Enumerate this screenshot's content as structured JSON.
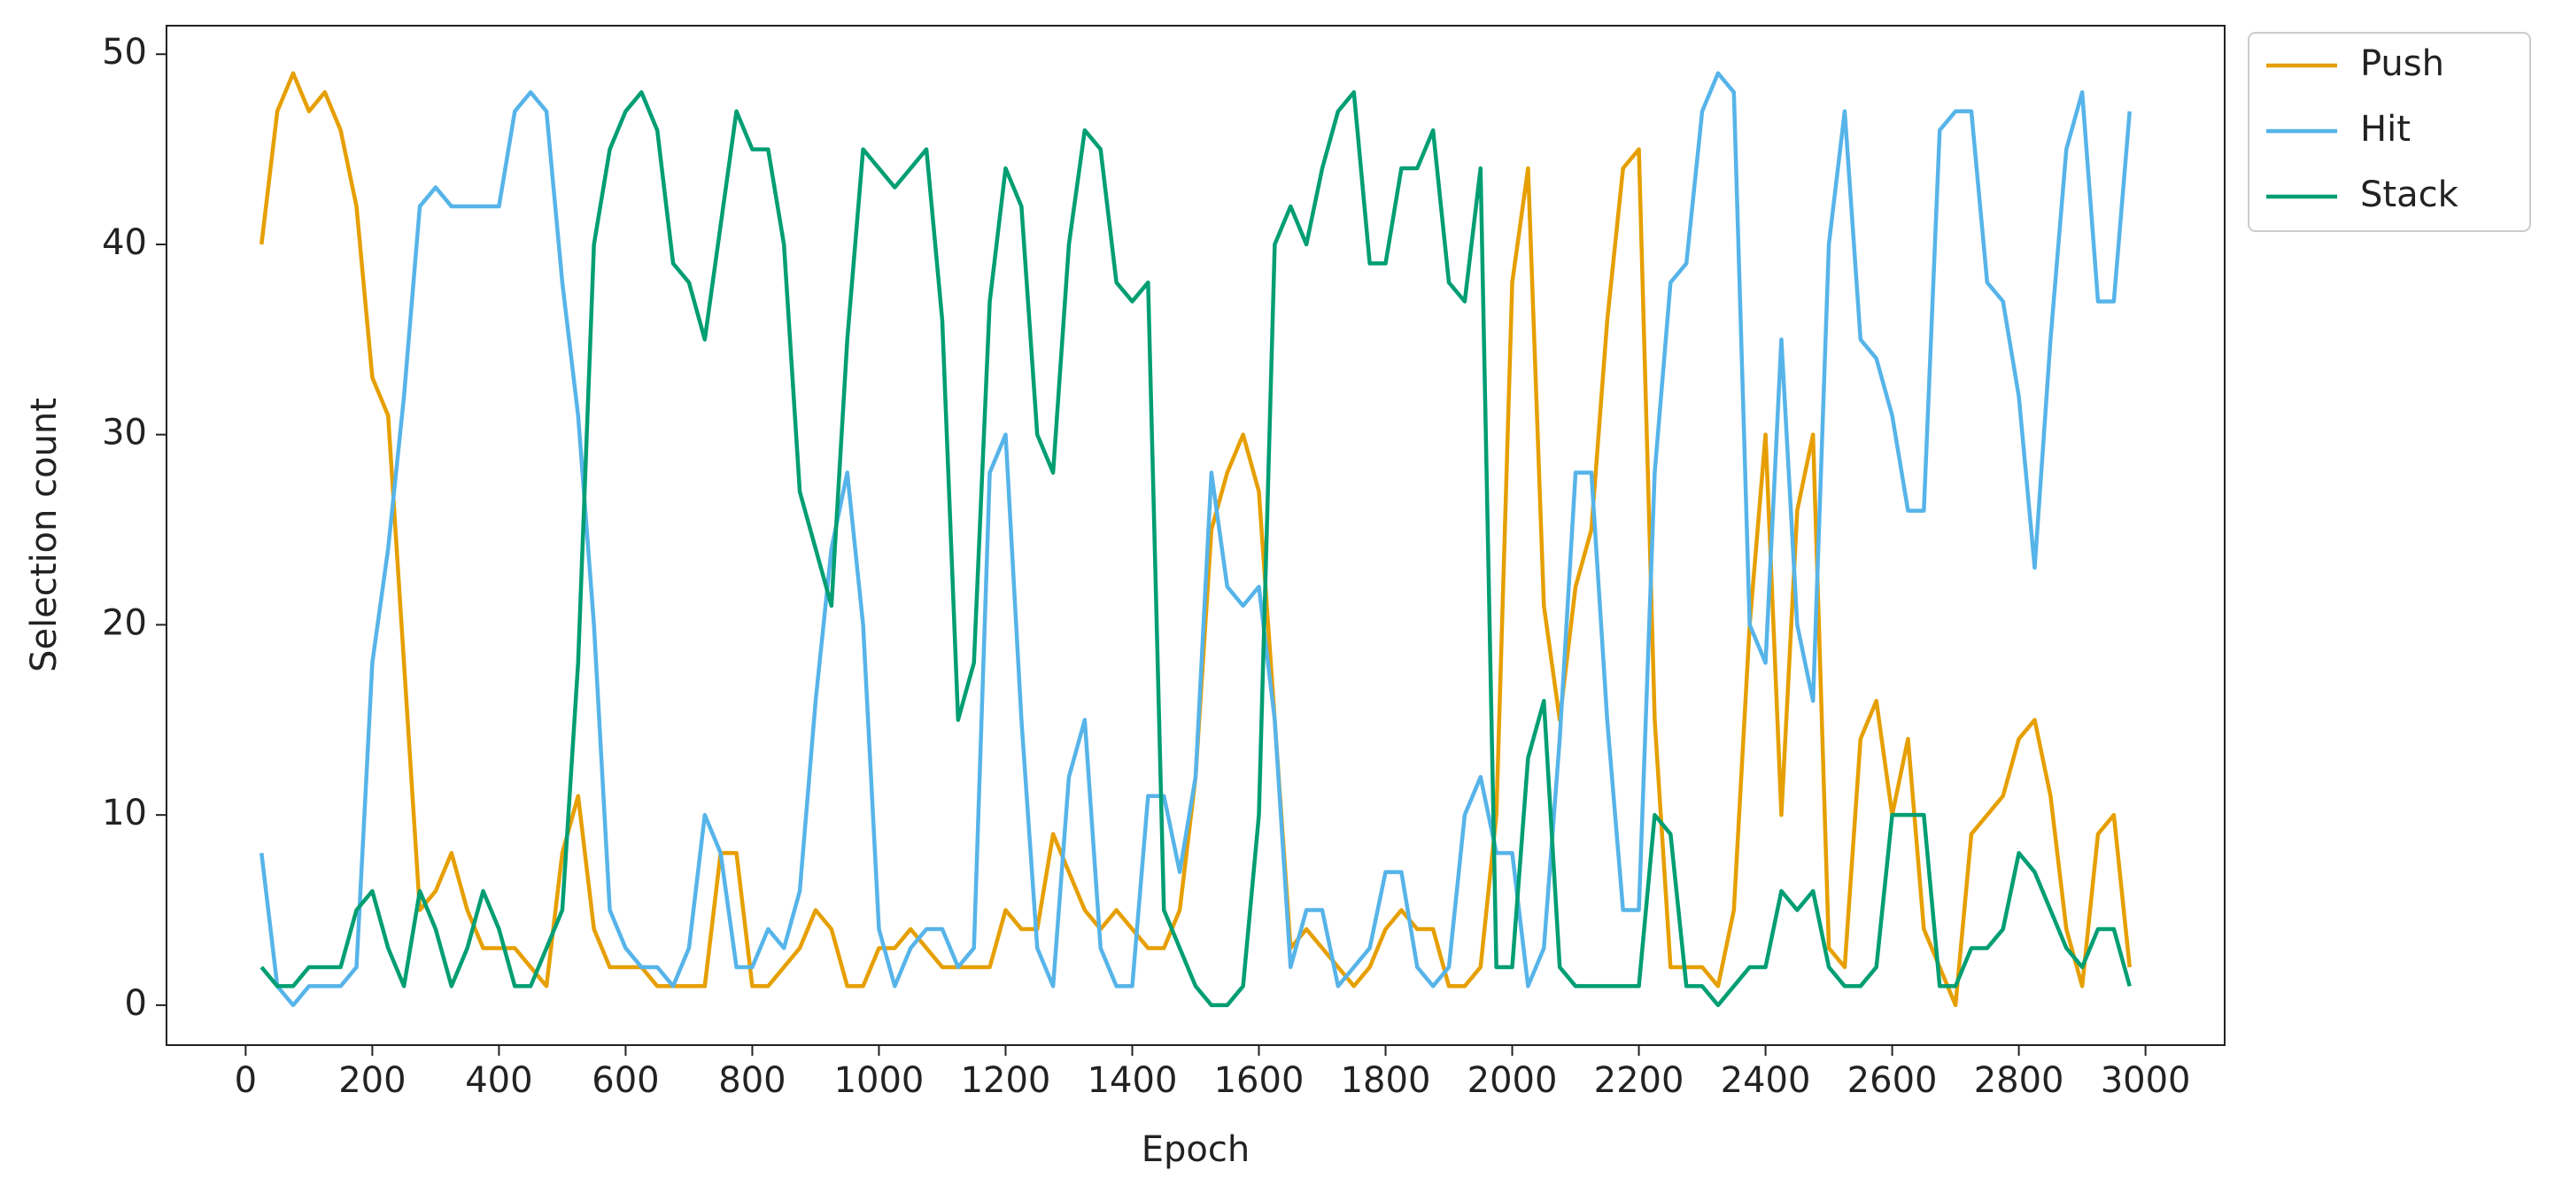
{
  "chart_data": {
    "type": "line",
    "x_label": "Epoch",
    "y_label": "Selection count",
    "x": [
      25,
      50,
      75,
      100,
      125,
      150,
      175,
      200,
      225,
      250,
      275,
      300,
      325,
      350,
      375,
      400,
      425,
      450,
      475,
      500,
      525,
      550,
      575,
      600,
      625,
      650,
      675,
      700,
      725,
      750,
      775,
      800,
      825,
      850,
      875,
      900,
      925,
      950,
      975,
      1000,
      1025,
      1050,
      1075,
      1100,
      1125,
      1150,
      1175,
      1200,
      1225,
      1250,
      1275,
      1300,
      1325,
      1350,
      1375,
      1400,
      1425,
      1450,
      1475,
      1500,
      1525,
      1550,
      1575,
      1600,
      1625,
      1650,
      1675,
      1700,
      1725,
      1750,
      1775,
      1800,
      1825,
      1850,
      1875,
      1900,
      1925,
      1950,
      1975,
      2000,
      2025,
      2050,
      2075,
      2100,
      2125,
      2150,
      2175,
      2200,
      2225,
      2250,
      2275,
      2300,
      2325,
      2350,
      2375,
      2400,
      2425,
      2450,
      2475,
      2500,
      2525,
      2550,
      2575,
      2600,
      2625,
      2650,
      2675,
      2700,
      2725,
      2750,
      2775,
      2800,
      2825,
      2850,
      2875,
      2900,
      2925,
      2950,
      2975
    ],
    "series": [
      {
        "name": "Push",
        "color": "#E69F00",
        "values": [
          40,
          47,
          49,
          47,
          48,
          46,
          42,
          33,
          31,
          18,
          5,
          6,
          8,
          5,
          3,
          3,
          3,
          2,
          1,
          8,
          11,
          4,
          2,
          2,
          2,
          1,
          1,
          1,
          1,
          8,
          8,
          1,
          1,
          2,
          3,
          5,
          4,
          1,
          1,
          3,
          3,
          4,
          3,
          2,
          2,
          2,
          2,
          5,
          4,
          4,
          9,
          7,
          5,
          4,
          5,
          4,
          3,
          3,
          5,
          12,
          25,
          28,
          30,
          27,
          15,
          3,
          4,
          3,
          2,
          1,
          2,
          4,
          5,
          4,
          4,
          1,
          1,
          2,
          10,
          38,
          44,
          21,
          15,
          22,
          25,
          36,
          44,
          45,
          15,
          2,
          2,
          2,
          1,
          5,
          20,
          30,
          10,
          26,
          30,
          3,
          2,
          14,
          16,
          10,
          14,
          4,
          2,
          0,
          9,
          10,
          11,
          14,
          15,
          11,
          4,
          1,
          9,
          10,
          2
        ]
      },
      {
        "name": "Hit",
        "color": "#56B4E9",
        "values": [
          8,
          1,
          0,
          1,
          1,
          1,
          2,
          18,
          24,
          32,
          42,
          43,
          42,
          42,
          42,
          42,
          47,
          48,
          47,
          38,
          31,
          20,
          5,
          3,
          2,
          2,
          1,
          3,
          10,
          8,
          2,
          2,
          4,
          3,
          6,
          16,
          24,
          28,
          20,
          4,
          1,
          3,
          4,
          4,
          2,
          3,
          28,
          30,
          15,
          3,
          1,
          12,
          15,
          3,
          1,
          1,
          11,
          11,
          7,
          12,
          28,
          22,
          21,
          22,
          15,
          2,
          5,
          5,
          1,
          2,
          3,
          7,
          7,
          2,
          1,
          2,
          10,
          12,
          8,
          8,
          1,
          3,
          14,
          28,
          28,
          15,
          5,
          5,
          28,
          38,
          39,
          47,
          49,
          48,
          20,
          18,
          35,
          20,
          16,
          40,
          47,
          35,
          34,
          31,
          26,
          26,
          46,
          47,
          47,
          38,
          37,
          32,
          23,
          35,
          45,
          48,
          37,
          37,
          47
        ]
      },
      {
        "name": "Stack",
        "color": "#009E73",
        "values": [
          2,
          1,
          1,
          2,
          2,
          2,
          5,
          6,
          3,
          1,
          6,
          4,
          1,
          3,
          6,
          4,
          1,
          1,
          3,
          5,
          18,
          40,
          45,
          47,
          48,
          46,
          39,
          38,
          35,
          41,
          47,
          45,
          45,
          40,
          27,
          24,
          21,
          35,
          45,
          44,
          43,
          44,
          45,
          36,
          15,
          18,
          37,
          44,
          42,
          30,
          28,
          40,
          46,
          45,
          38,
          37,
          38,
          5,
          3,
          1,
          0,
          0,
          1,
          10,
          40,
          42,
          40,
          44,
          47,
          48,
          39,
          39,
          44,
          44,
          46,
          38,
          37,
          44,
          2,
          2,
          13,
          16,
          2,
          1,
          1,
          1,
          1,
          1,
          10,
          9,
          1,
          1,
          0,
          1,
          2,
          2,
          6,
          5,
          6,
          2,
          1,
          1,
          2,
          10,
          10,
          10,
          1,
          1,
          3,
          3,
          4,
          8,
          7,
          5,
          3,
          2,
          4,
          4,
          1
        ]
      }
    ],
    "xlim": [
      -125,
      3125
    ],
    "ylim": [
      -2.1,
      51.5
    ],
    "xticks": [
      0,
      200,
      400,
      600,
      800,
      1000,
      1200,
      1400,
      1600,
      1800,
      2000,
      2200,
      2400,
      2600,
      2800,
      3000
    ],
    "yticks": [
      0,
      10,
      20,
      30,
      40,
      50
    ],
    "grid": false,
    "legend": "outside upper right"
  }
}
